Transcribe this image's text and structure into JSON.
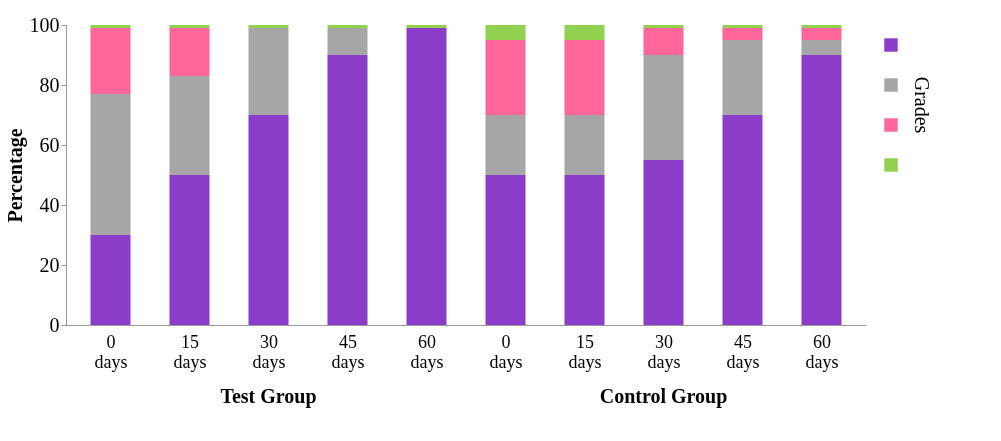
{
  "chart_data": {
    "type": "bar",
    "stacked": true,
    "ylabel": "Percentage",
    "legend_title": "Grades",
    "grid": false,
    "categories": [
      "0 days",
      "15 days",
      "30 days",
      "45 days",
      "60 days",
      "0 days",
      "15 days",
      "30 days",
      "45 days",
      "60 days"
    ],
    "ylim": [
      0,
      100
    ],
    "yticks": [
      0,
      20,
      40,
      60,
      80,
      100
    ],
    "annotations": [
      "Test  Group",
      "Control Group"
    ],
    "series": [
      {
        "color": "#8b3cc8",
        "values": [
          30,
          50,
          70,
          90,
          99,
          50,
          50,
          55,
          70,
          90
        ]
      },
      {
        "color": "#a6a6a6",
        "values": [
          47,
          33,
          29,
          9,
          0,
          20,
          20,
          35,
          25,
          5
        ]
      },
      {
        "color": "#ff6699",
        "values": [
          22,
          16,
          0,
          0,
          0,
          25,
          25,
          9,
          4,
          4
        ]
      },
      {
        "color": "#92d050",
        "values": [
          1,
          1,
          1,
          1,
          1,
          5,
          5,
          1,
          1,
          1
        ]
      }
    ]
  }
}
